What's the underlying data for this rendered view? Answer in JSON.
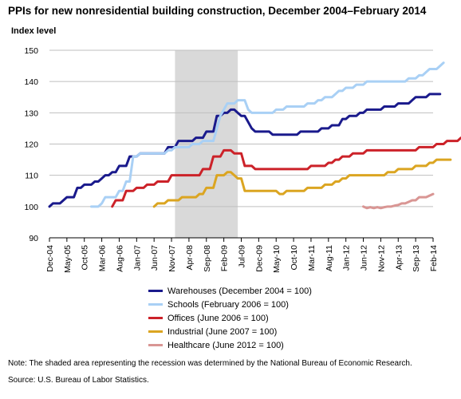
{
  "chart_data": {
    "type": "line",
    "title": "PPIs for new nonresidential building construction, December 2004–February 2014",
    "ylabel": "Index level",
    "ylim": [
      90,
      150
    ],
    "yticks": [
      90,
      100,
      110,
      120,
      130,
      140,
      150
    ],
    "x_tick_labels": [
      "Dec-04",
      "May-05",
      "Oct-05",
      "Mar-06",
      "Aug-06",
      "Jan-07",
      "Jun-07",
      "Nov-07",
      "Apr-08",
      "Sep-08",
      "Feb-09",
      "Jul-09",
      "Dec-09",
      "May-10",
      "Oct-10",
      "Mar-11",
      "Aug-11",
      "Jan-12",
      "Jun-12",
      "Nov-12",
      "Apr-13",
      "Sep-13",
      "Feb-14"
    ],
    "recession_shading": [
      "Dec-07",
      "Jun-09"
    ],
    "grid": "horizontal",
    "legend_position": "bottom",
    "series": [
      {
        "name": "Warehouses (December 2004 = 100)",
        "color": "#1a1a8c",
        "start_month": 0,
        "values": [
          100,
          101,
          101,
          101,
          102,
          103,
          103,
          103,
          106,
          106,
          107,
          107,
          107,
          108,
          108,
          109,
          110,
          110,
          111,
          111,
          113,
          113,
          113,
          116,
          116,
          116,
          117,
          117,
          117,
          117,
          117,
          117,
          117,
          117,
          119,
          119,
          119,
          121,
          121,
          121,
          121,
          121,
          122,
          122,
          122,
          124,
          124,
          124,
          129,
          129,
          130,
          130,
          131,
          131,
          130,
          129,
          129,
          127,
          125,
          124,
          124,
          124,
          124,
          124,
          123,
          123,
          123,
          123,
          123,
          123,
          123,
          123,
          124,
          124,
          124,
          124,
          124,
          124,
          125,
          125,
          125,
          126,
          126,
          126,
          128,
          128,
          129,
          129,
          129,
          130,
          130,
          131,
          131,
          131,
          131,
          131,
          132,
          132,
          132,
          132,
          133,
          133,
          133,
          133,
          134,
          135,
          135,
          135,
          135,
          136,
          136,
          136,
          136
        ]
      },
      {
        "name": "Schools (February 2006 = 100)",
        "color": "#a9d0f5",
        "start_month": 12,
        "values": [
          100,
          100,
          100,
          101,
          103,
          103,
          103,
          103,
          105,
          105,
          108,
          108,
          116,
          116,
          117,
          117,
          117,
          117,
          117,
          117,
          117,
          117,
          118,
          118,
          119,
          119,
          119,
          119,
          119,
          120,
          120,
          120,
          121,
          121,
          121,
          121,
          125,
          129,
          131,
          133,
          133,
          133,
          134,
          134,
          134,
          131,
          130,
          130,
          130,
          130,
          130,
          130,
          130,
          131,
          131,
          131,
          132,
          132,
          132,
          132,
          132,
          132,
          133,
          133,
          133,
          134,
          134,
          135,
          135,
          135,
          136,
          137,
          137,
          138,
          138,
          138,
          139,
          139,
          139,
          140,
          140,
          140,
          140,
          140,
          140,
          140,
          140,
          140,
          140,
          140,
          140,
          141,
          141,
          141,
          142,
          142,
          143,
          144,
          144,
          144,
          145,
          146
        ]
      },
      {
        "name": "Offices (June 2006 = 100)",
        "color": "#cc2229",
        "start_month": 18,
        "values": [
          100,
          102,
          102,
          102,
          105,
          105,
          105,
          106,
          106,
          106,
          107,
          107,
          107,
          108,
          108,
          108,
          108,
          110,
          110,
          110,
          110,
          110,
          110,
          110,
          110,
          110,
          112,
          112,
          112,
          116,
          116,
          116,
          118,
          118,
          118,
          117,
          117,
          117,
          113,
          113,
          113,
          112,
          112,
          112,
          112,
          112,
          112,
          112,
          112,
          112,
          112,
          112,
          112,
          112,
          112,
          112,
          112,
          113,
          113,
          113,
          113,
          113,
          114,
          114,
          115,
          115,
          116,
          116,
          116,
          117,
          117,
          117,
          117,
          118,
          118,
          118,
          118,
          118,
          118,
          118,
          118,
          118,
          118,
          118,
          118,
          118,
          118,
          118,
          119,
          119,
          119,
          119,
          119,
          120,
          120,
          120,
          121,
          121,
          121,
          121,
          122,
          122
        ]
      },
      {
        "name": "Industrial (June 2007 = 100)",
        "color": "#dba521",
        "start_month": 30,
        "values": [
          100,
          101,
          101,
          101,
          102,
          102,
          102,
          102,
          103,
          103,
          103,
          103,
          103,
          104,
          104,
          106,
          106,
          106,
          110,
          110,
          110,
          111,
          111,
          110,
          109,
          109,
          105,
          105,
          105,
          105,
          105,
          105,
          105,
          105,
          105,
          105,
          104,
          104,
          105,
          105,
          105,
          105,
          105,
          105,
          106,
          106,
          106,
          106,
          106,
          107,
          107,
          107,
          108,
          108,
          109,
          109,
          110,
          110,
          110,
          110,
          110,
          110,
          110,
          110,
          110,
          110,
          110,
          111,
          111,
          111,
          112,
          112,
          112,
          112,
          112,
          113,
          113,
          113,
          113,
          114,
          114,
          115,
          115,
          115,
          115,
          115
        ]
      },
      {
        "name": "Healthcare (June 2012 = 100)",
        "color": "#d99694",
        "start_month": 90,
        "values": [
          100,
          99.5,
          99.8,
          99.5,
          99.8,
          99.5,
          99.8,
          100,
          100,
          100.3,
          100.5,
          101,
          101,
          101.5,
          102,
          102,
          103,
          103,
          103,
          103.5,
          104
        ]
      }
    ]
  },
  "note": "Note: The shaded area representing the recession was determined by the National Bureau of Economic Research.",
  "source": "Source: U.S. Bureau of Labor Statistics."
}
